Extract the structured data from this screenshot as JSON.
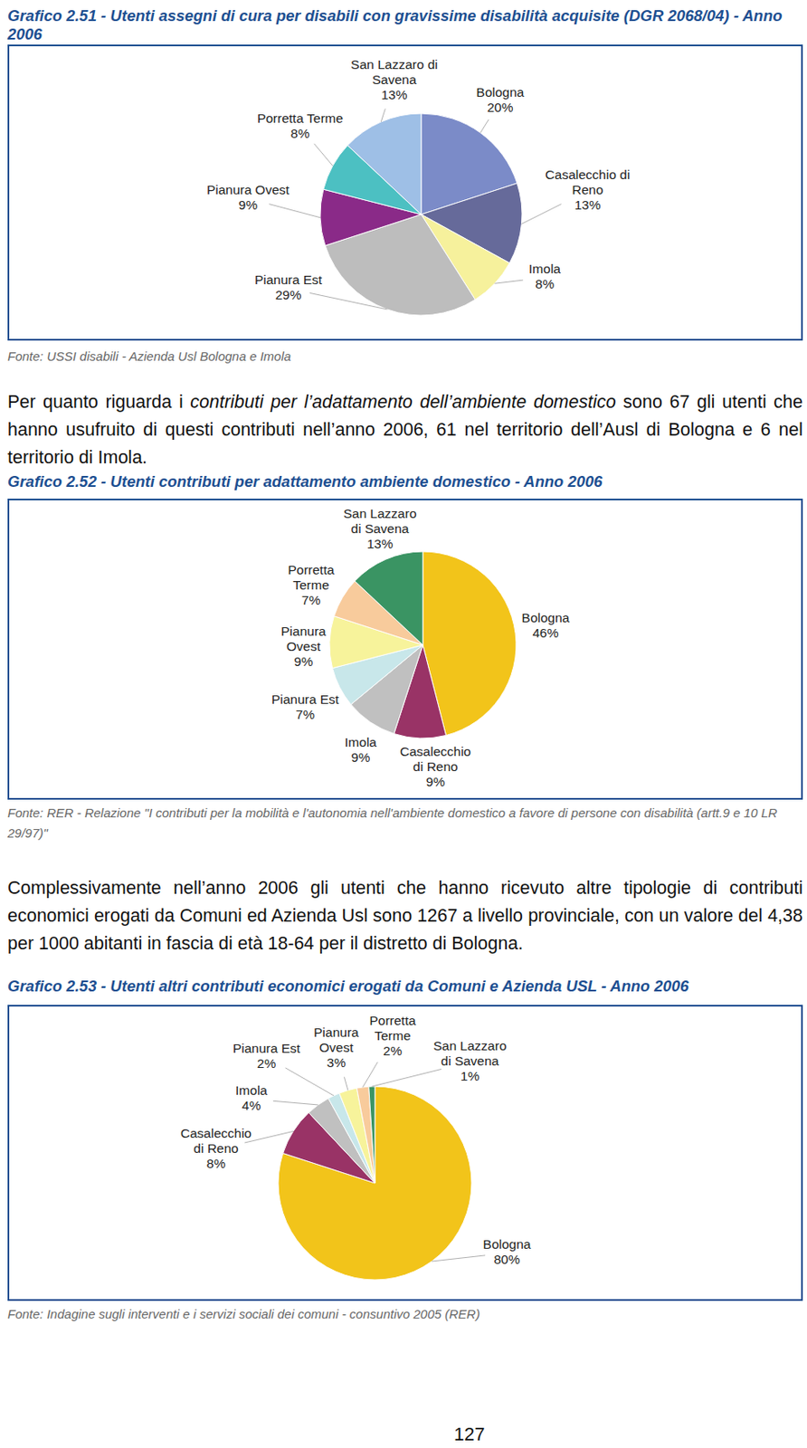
{
  "chart_data": [
    {
      "type": "pie",
      "title": "Grafico 2.51 - Utenti assegni di cura per disabili con gravissime disabilità acquisite (DGR 2068/04) - Anno 2006",
      "source": "Fonte: USSI disabili - Azienda Usl Bologna e Imola",
      "categories": [
        "Bologna",
        "Casalecchio di Reno",
        "Imola",
        "Pianura Est",
        "Pianura Ovest",
        "Porretta Terme",
        "San Lazzaro di Savena"
      ],
      "values": [
        20,
        13,
        8,
        29,
        9,
        8,
        13
      ],
      "value_labels": [
        "20%",
        "13%",
        "8%",
        "29%",
        "9%",
        "8%",
        "13%"
      ],
      "colors": [
        "#7b8bc8",
        "#666a9a",
        "#f6f19c",
        "#bdbdbd",
        "#8a2a88",
        "#4cc0c2",
        "#9ebfe6"
      ],
      "data_labels": true
    },
    {
      "type": "pie",
      "title": "Grafico 2.52 - Utenti contributi per adattamento ambiente domestico - Anno 2006",
      "source": "Fonte: RER - Relazione \"I contributi per la mobilità e l'autonomia nell'ambiente domestico a favore di persone con disabilità (artt.9 e 10 LR 29/97)\"",
      "categories": [
        "Bologna",
        "Casalecchio di Reno",
        "Imola",
        "Pianura Est",
        "Pianura Ovest",
        "Porretta Terme",
        "San Lazzaro di Savena"
      ],
      "values": [
        46,
        9,
        9,
        7,
        9,
        7,
        13
      ],
      "value_labels": [
        "46%",
        "9%",
        "9%",
        "7%",
        "9%",
        "7%",
        "13%"
      ],
      "colors": [
        "#f2c41a",
        "#993366",
        "#c0c0c0",
        "#c8e7ea",
        "#f7f39b",
        "#f8cb9c",
        "#3a9463"
      ],
      "data_labels": true
    },
    {
      "type": "pie",
      "title": "Grafico 2.53 - Utenti altri contributi economici erogati da Comuni e Azienda USL - Anno 2006",
      "source": "Fonte: Indagine sugli interventi e i servizi sociali dei comuni - consuntivo 2005 (RER)",
      "categories": [
        "Bologna",
        "Casalecchio di Reno",
        "Imola",
        "Pianura Est",
        "Pianura Ovest",
        "Porretta Terme",
        "San Lazzaro di Savena"
      ],
      "values": [
        80,
        8,
        4,
        2,
        3,
        2,
        1
      ],
      "value_labels": [
        "80%",
        "8%",
        "4%",
        "2%",
        "3%",
        "2%",
        "1%"
      ],
      "colors": [
        "#f2c41a",
        "#993366",
        "#c0c0c0",
        "#c8e7ea",
        "#f7f39b",
        "#f8cb9c",
        "#3a9463"
      ],
      "data_labels": true
    }
  ],
  "paragraphs": [
    {
      "segments": [
        {
          "text": "Per quanto riguarda i ",
          "italic": false
        },
        {
          "text": "contributi per l’adattamento dell’ambiente domestico",
          "italic": true
        },
        {
          "text": " sono 67 gli utenti che hanno usufruito di questi contributi nell’anno 2006, 61 nel territorio dell’Ausl di Bologna e 6 nel territorio di Imola.",
          "italic": false
        }
      ]
    },
    {
      "segments": [
        {
          "text": "Complessivamente nell’anno 2006 gli utenti che hanno ricevuto altre tipologie di contributi economici erogati da Comuni ed Azienda Usl sono 1267 a livello provinciale, con un valore del 4,38 per 1000 abitanti in fascia di età 18-64 per il distretto di Bologna.",
          "italic": false
        }
      ]
    }
  ],
  "page_number": "127"
}
